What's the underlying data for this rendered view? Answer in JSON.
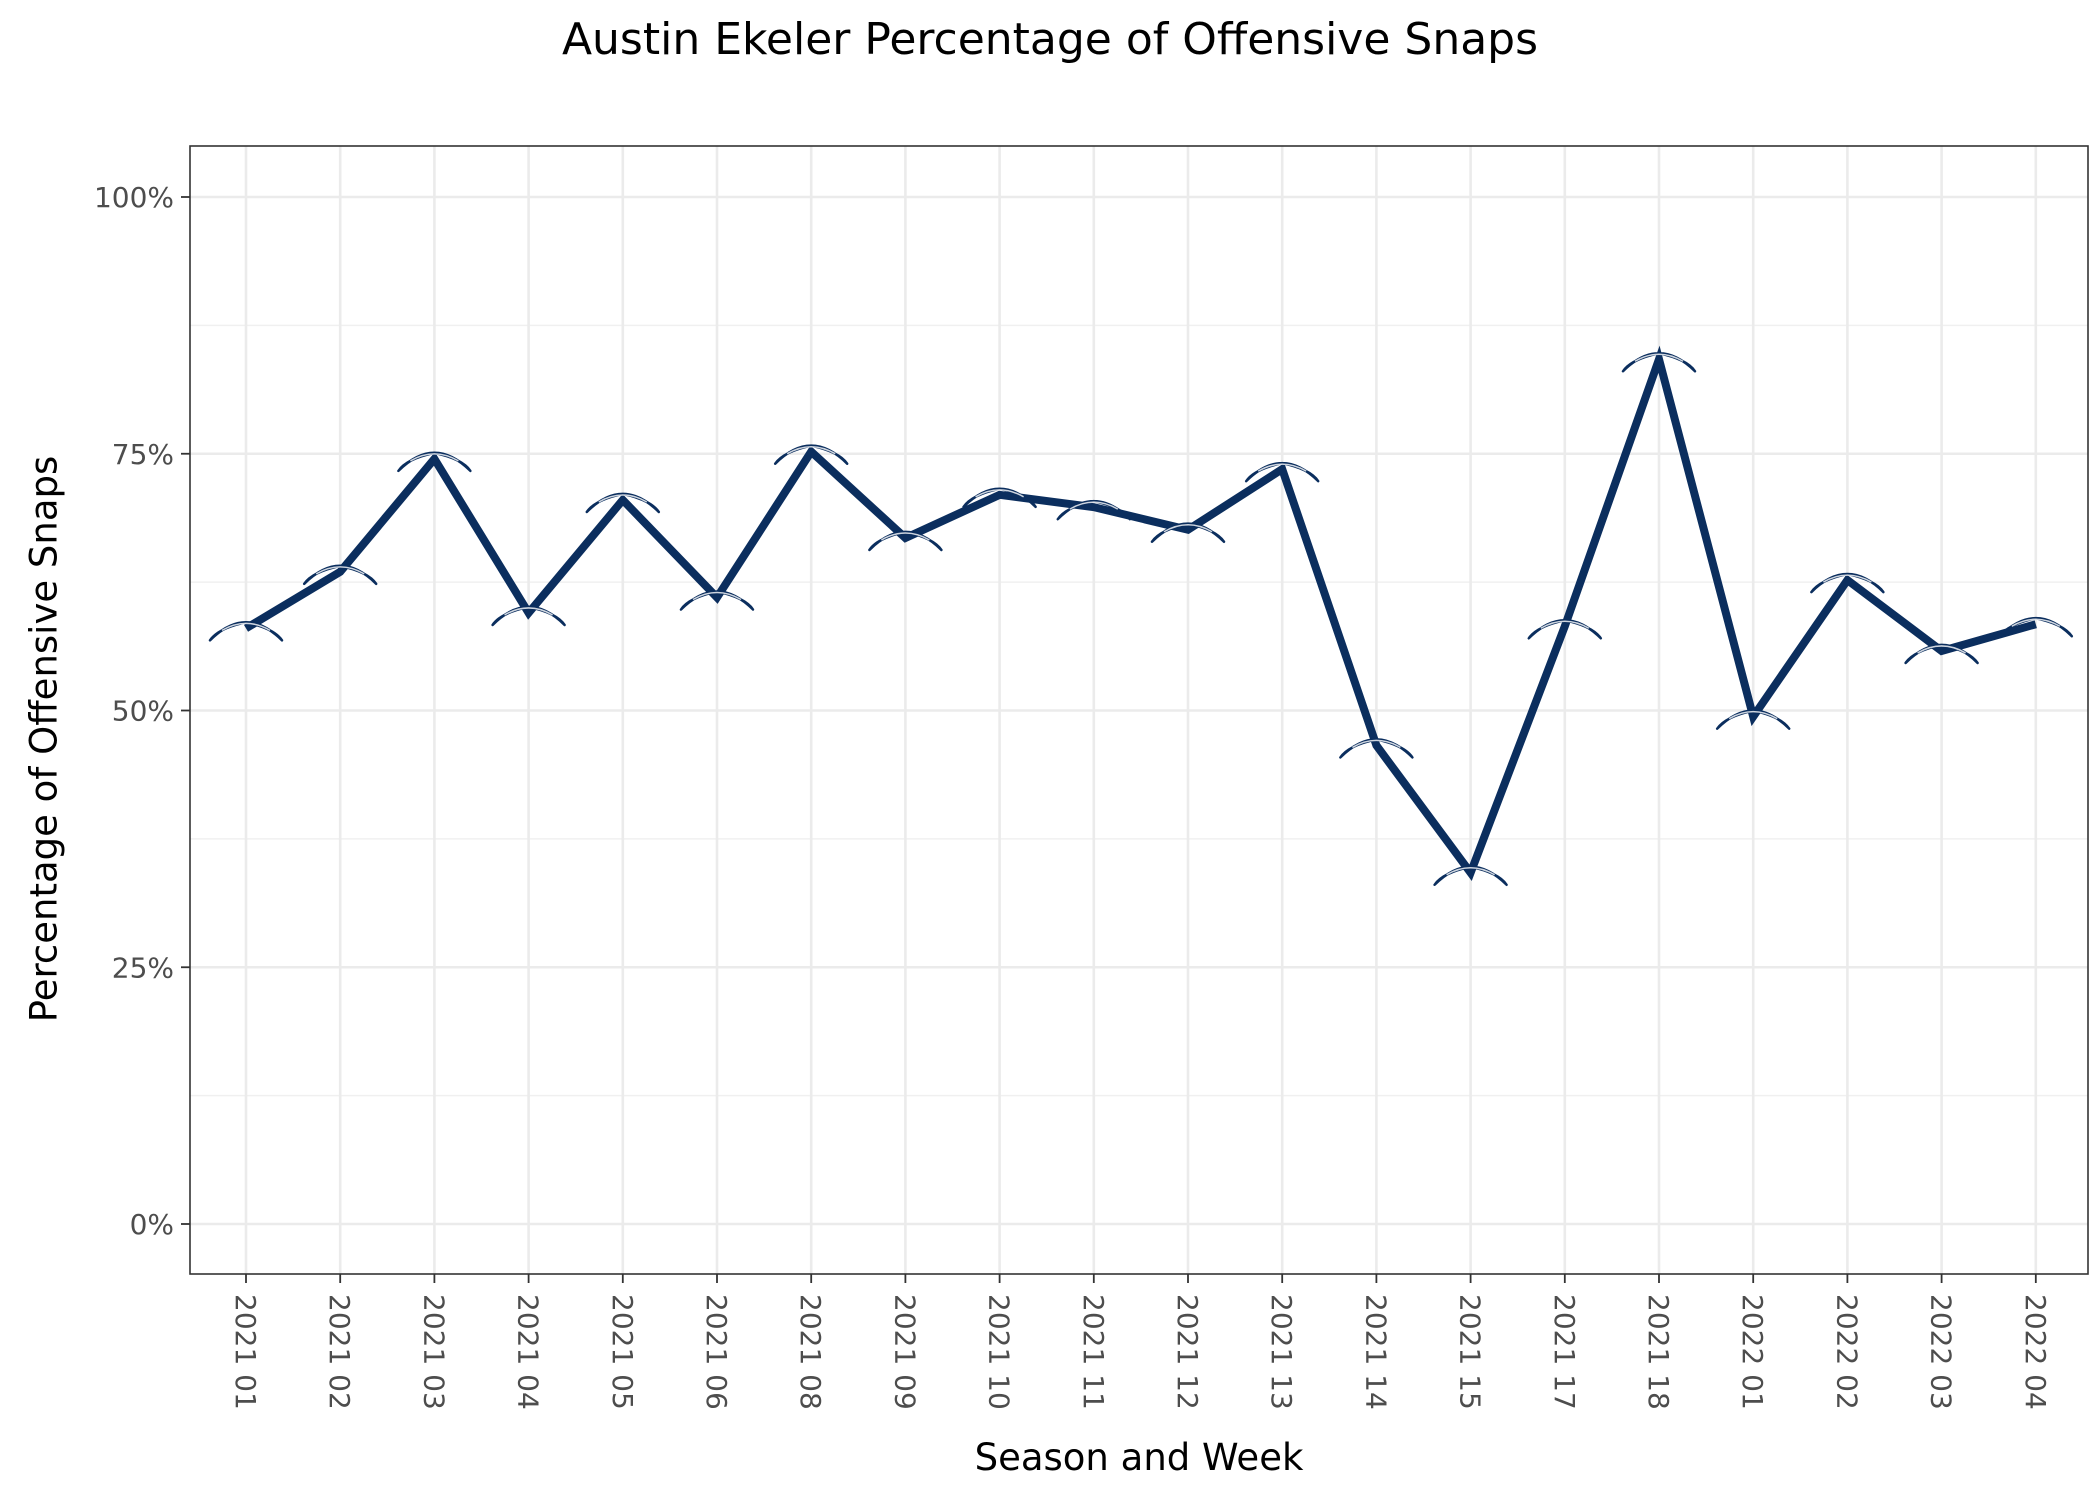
{
  "chart_data": {
    "type": "line",
    "title": "Austin Ekeler Percentage of Offensive Snaps",
    "xlabel": "Season and Week",
    "ylabel": "Percentage of Offensive Snaps",
    "categories": [
      "2021 01",
      "2021 02",
      "2021 03",
      "2021 04",
      "2021 05",
      "2021 06",
      "2021 08",
      "2021 09",
      "2021 10",
      "2021 11",
      "2021 12",
      "2021 13",
      "2021 14",
      "2021 15",
      "2021 17",
      "2021 18",
      "2022 01",
      "2022 02",
      "2022 03",
      "2022 04"
    ],
    "series": [
      {
        "values": [
          58.0,
          63.5,
          74.5,
          59.5,
          70.5,
          61.0,
          75.2,
          66.8,
          71.0,
          69.8,
          67.6,
          73.5,
          46.6,
          34.2,
          58.2,
          84.2,
          49.4,
          62.7,
          55.8,
          58.4
        ]
      }
    ],
    "ylim": [
      -5,
      100
    ],
    "yticks": [
      0,
      25,
      50,
      75,
      100
    ],
    "ytick_labels": [
      "0%",
      "25%",
      "50%",
      "75%",
      "100%"
    ],
    "grid": true,
    "line_color": "#0b2e5e",
    "marker": "chargers-bolt-icon",
    "marker_colors": {
      "fill": "#f5c337",
      "outline": "#0b2e5e"
    }
  }
}
